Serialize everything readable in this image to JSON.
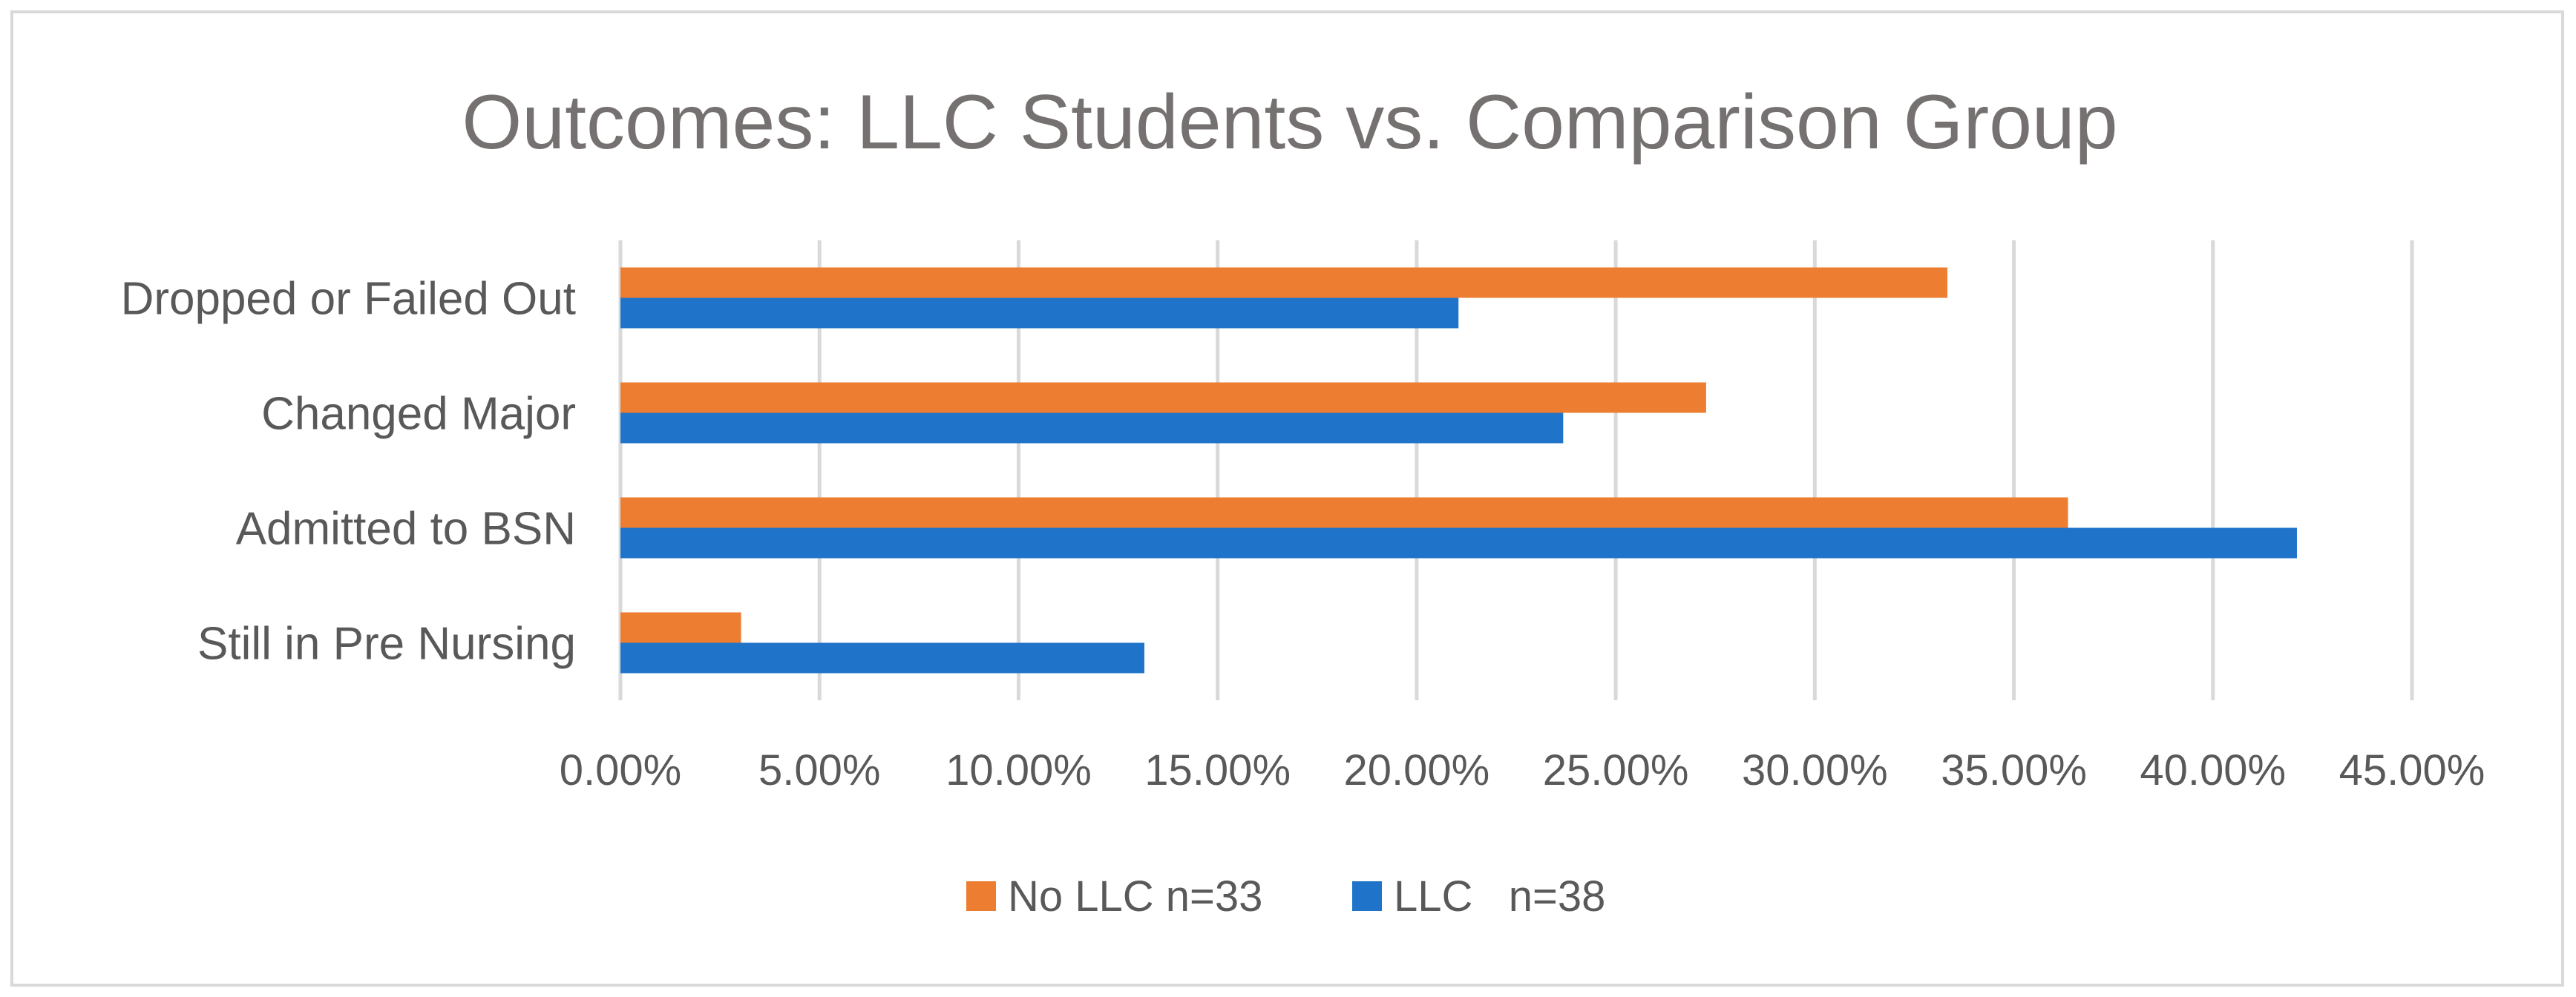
{
  "chart_data": {
    "type": "bar",
    "orientation": "horizontal",
    "title": "Outcomes: LLC Students vs. Comparison Group",
    "categories": [
      "Dropped or Failed Out",
      "Changed Major",
      "Admitted to BSN",
      "Still in Pre Nursing"
    ],
    "series": [
      {
        "name": "No LLC n=33",
        "color": "#ED7D31",
        "values": [
          0.3333,
          0.2727,
          0.3636,
          0.0303
        ]
      },
      {
        "name": "LLC   n=38",
        "color": "#1F74C9",
        "values": [
          0.2105,
          0.2368,
          0.4211,
          0.1316
        ]
      }
    ],
    "xlim": [
      0,
      0.45
    ],
    "xticks": [
      0,
      0.05,
      0.1,
      0.15,
      0.2,
      0.25,
      0.3,
      0.35,
      0.4,
      0.45
    ],
    "xtick_labels": [
      "0.00%",
      "5.00%",
      "10.00%",
      "15.00%",
      "20.00%",
      "25.00%",
      "30.00%",
      "35.00%",
      "40.00%",
      "45.00%"
    ],
    "xlabel": "",
    "ylabel": "",
    "grid": "vertical",
    "legend_position": "bottom"
  }
}
